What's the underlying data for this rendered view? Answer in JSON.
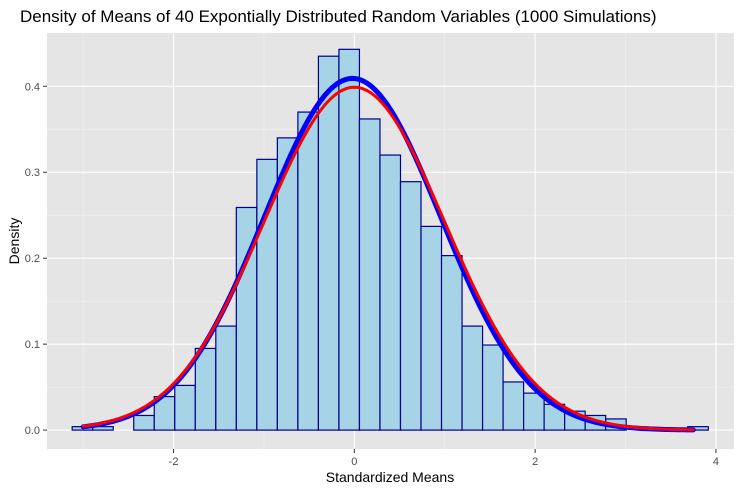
{
  "chart_data": {
    "type": "bar",
    "title": "Density of Means of 40 Expontially Distributed Random Variables (1000 Simulations)",
    "xlabel": "Standardized Means",
    "ylabel": "Density",
    "xlim": [
      -3.4,
      4.2
    ],
    "ylim": [
      -0.022,
      0.462
    ],
    "x_ticks": [
      -2,
      0,
      2,
      4
    ],
    "x_tick_labels": [
      "-2",
      "0",
      "2",
      "4"
    ],
    "y_ticks": [
      0.0,
      0.1,
      0.2,
      0.3,
      0.4
    ],
    "y_tick_labels": [
      "0.0",
      "0.1",
      "0.2",
      "0.3",
      "0.4"
    ],
    "grid": true,
    "legend": "none",
    "bin_width": 0.227,
    "bins": [
      {
        "x": -3.008,
        "density": 0.004
      },
      {
        "x": -2.781,
        "density": 0.004
      },
      {
        "x": -2.554,
        "density": 0.0
      },
      {
        "x": -2.327,
        "density": 0.017
      },
      {
        "x": -2.1,
        "density": 0.039
      },
      {
        "x": -1.873,
        "density": 0.052
      },
      {
        "x": -1.646,
        "density": 0.095
      },
      {
        "x": -1.419,
        "density": 0.121
      },
      {
        "x": -1.192,
        "density": 0.259
      },
      {
        "x": -0.965,
        "density": 0.315
      },
      {
        "x": -0.738,
        "density": 0.34
      },
      {
        "x": -0.511,
        "density": 0.37
      },
      {
        "x": -0.284,
        "density": 0.435
      },
      {
        "x": -0.057,
        "density": 0.443
      },
      {
        "x": 0.17,
        "density": 0.362
      },
      {
        "x": 0.397,
        "density": 0.32
      },
      {
        "x": 0.624,
        "density": 0.289
      },
      {
        "x": 0.851,
        "density": 0.237
      },
      {
        "x": 1.078,
        "density": 0.203
      },
      {
        "x": 1.305,
        "density": 0.121
      },
      {
        "x": 1.532,
        "density": 0.099
      },
      {
        "x": 1.759,
        "density": 0.056
      },
      {
        "x": 1.986,
        "density": 0.043
      },
      {
        "x": 2.213,
        "density": 0.03
      },
      {
        "x": 2.44,
        "density": 0.022
      },
      {
        "x": 2.667,
        "density": 0.017
      },
      {
        "x": 2.894,
        "density": 0.013
      },
      {
        "x": 3.121,
        "density": 0.0
      },
      {
        "x": 3.348,
        "density": 0.0
      },
      {
        "x": 3.575,
        "density": 0.0
      },
      {
        "x": 3.802,
        "density": 0.004
      }
    ],
    "curves": [
      {
        "distribution": "normal",
        "mean": -0.02,
        "sd": 0.975,
        "x_range": [
          -3.0,
          3.75
        ],
        "color": "#0000ff",
        "width": "thick"
      },
      {
        "distribution": "normal",
        "mean": 0.0,
        "sd": 1.0,
        "x_range": [
          -3.0,
          3.75
        ],
        "color": "#ff0000",
        "width": "medium"
      }
    ],
    "colors": {
      "panel_background": "#e5e5e5",
      "grid_major": "#ffffff",
      "grid_minor": "#f2f2f2",
      "bar_fill": "#a6d3e5",
      "bar_outline": "#00008b",
      "tick_color": "#333333"
    }
  }
}
